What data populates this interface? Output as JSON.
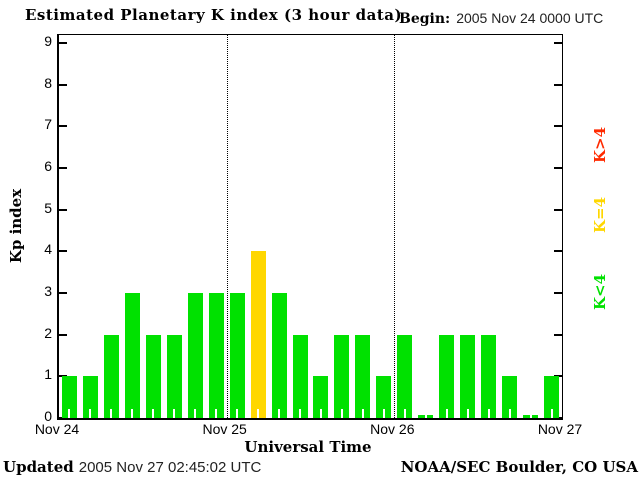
{
  "header": {
    "title": "Estimated Planetary K index (3 hour data)",
    "begin_label": "Begin:",
    "begin_value": "2005 Nov 24 0000 UTC"
  },
  "footer": {
    "updated_label": "Updated",
    "updated_value": "2005 Nov 27 02:45:02 UTC",
    "credit": "NOAA/SEC Boulder, CO USA"
  },
  "chart_data": {
    "type": "bar",
    "title": "Estimated Planetary K index (3 hour data)",
    "begin": "2005 Nov 24 0000 UTC",
    "interval_hours": 3,
    "xlabel": "Universal Time",
    "ylabel": "Kp index",
    "ylim": [
      0,
      9
    ],
    "y_ticks": [
      0,
      1,
      2,
      3,
      4,
      5,
      6,
      7,
      8,
      9
    ],
    "x_tick_labels": [
      "Nov 24",
      "Nov 25",
      "Nov 26",
      "Nov 27"
    ],
    "bars_per_day": 8,
    "grid": "dotted vertical lines at day boundaries",
    "values": [
      1,
      1,
      2,
      3,
      2,
      2,
      3,
      3,
      3,
      4,
      3,
      2,
      1,
      2,
      2,
      1,
      2,
      0,
      2,
      2,
      2,
      1,
      0,
      1
    ],
    "colors": {
      "low": "#00e100",
      "mid": "#ffd700",
      "high": "#ff2a00"
    },
    "legend": [
      {
        "label": "K>4",
        "color": "#ff2a00"
      },
      {
        "label": "K=4",
        "color": "#ffd700"
      },
      {
        "label": "K<4",
        "color": "#00e100"
      }
    ],
    "legend_position": "right, rotated 90deg"
  }
}
